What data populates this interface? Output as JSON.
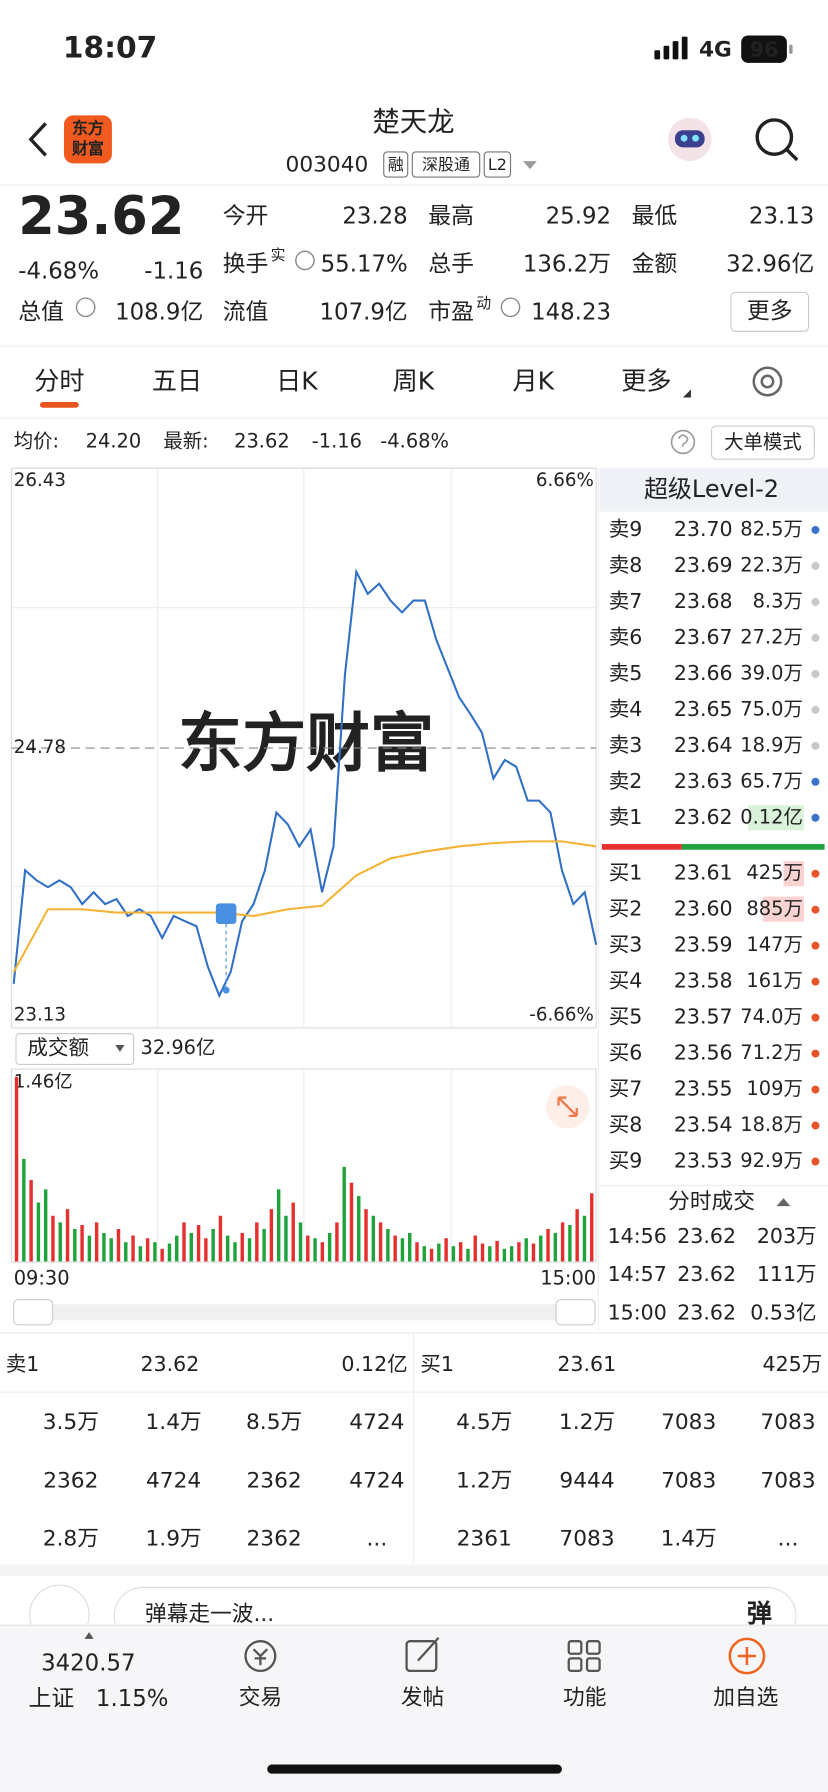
{
  "status_bar": {
    "time": "18:07",
    "network": "4G",
    "battery": "96"
  },
  "header": {
    "logo": [
      "东方",
      "财富"
    ],
    "title": "楚天龙",
    "code": "003040",
    "tags": [
      "融",
      "深股通",
      "L2"
    ]
  },
  "quote": {
    "price": "23.62",
    "change_percent": "-4.68%",
    "change": "-1.16",
    "stats": [
      {
        "label": "今开",
        "value": "23.28",
        "color": "#1f9e3a"
      },
      {
        "label": "最高",
        "value": "25.92",
        "color": "#e5302f"
      },
      {
        "label": "最低",
        "value": "23.13",
        "color": "#1f9e3a"
      },
      {
        "label": "换手",
        "sup": "实",
        "value": "55.17%"
      },
      {
        "label": "总手",
        "value": "136.2万"
      },
      {
        "label": "金额",
        "value": "32.96亿"
      },
      {
        "label": "总值",
        "value": "108.9亿"
      },
      {
        "label": "流值",
        "value": "107.9亿"
      },
      {
        "label": "市盈",
        "sup": "动",
        "value": "148.23"
      }
    ],
    "more": "更多"
  },
  "tabs": {
    "items": [
      "分时",
      "五日",
      "日K",
      "周K",
      "月K",
      "更多"
    ],
    "active": 0
  },
  "info_line": {
    "avg_label": "均价:",
    "avg": "24.20",
    "latest_label": "最新:",
    "latest": "23.62",
    "change": "-1.16",
    "change_percent": "-4.68%",
    "mode_button": "大单模式"
  },
  "chart_data": [
    {
      "type": "line",
      "watermark": "东方财富",
      "ylim": [
        23.13,
        26.43
      ],
      "yticks": [
        26.43,
        24.78,
        23.13
      ],
      "y2lim": [
        -6.66,
        6.66
      ],
      "y2ticks": [
        {
          "value": 6.66,
          "label": "6.66%"
        },
        {
          "value": -6.66,
          "label": "-6.66%"
        }
      ],
      "series": [
        {
          "color": "#2f6fc6",
          "values": [
            23.39,
            24.06,
            24.0,
            23.96,
            24.0,
            23.96,
            23.86,
            23.93,
            23.86,
            23.89,
            23.79,
            23.83,
            23.79,
            23.66,
            23.79,
            23.76,
            23.73,
            23.49,
            23.32,
            23.46,
            23.76,
            23.86,
            24.06,
            24.4,
            24.33,
            24.2,
            24.3,
            23.93,
            24.2,
            25.21,
            25.82,
            25.69,
            25.75,
            25.65,
            25.58,
            25.65,
            25.65,
            25.42,
            25.25,
            25.08,
            24.98,
            24.87,
            24.6,
            24.71,
            24.67,
            24.47,
            24.47,
            24.4,
            24.06,
            23.86,
            23.93,
            23.62
          ]
        },
        {
          "color": "#f5b335",
          "values": [
            23.46,
            23.83,
            23.83,
            23.81,
            23.81,
            23.81,
            23.81,
            23.79,
            23.83,
            23.85,
            24.03,
            24.13,
            24.17,
            24.2,
            24.22,
            24.23,
            24.23,
            24.2
          ]
        }
      ]
    },
    {
      "type": "bar",
      "title": "成交额",
      "total": "32.96亿",
      "ylim": [
        0,
        1.46
      ],
      "yticks": [
        {
          "value": 1.46,
          "label": "1.46亿"
        }
      ],
      "x_labels": [
        "09:30",
        "15:00"
      ],
      "values": [
        1.4,
        0.78,
        0.62,
        0.45,
        0.55,
        0.35,
        0.3,
        0.4,
        0.25,
        0.28,
        0.2,
        0.3,
        0.22,
        0.18,
        0.25,
        0.15,
        0.2,
        0.12,
        0.18,
        0.15,
        0.1,
        0.14,
        0.2,
        0.3,
        0.22,
        0.28,
        0.18,
        0.25,
        0.35,
        0.2,
        0.15,
        0.22,
        0.18,
        0.3,
        0.25,
        0.4,
        0.55,
        0.35,
        0.45,
        0.3,
        0.2,
        0.18,
        0.15,
        0.22,
        0.3,
        0.72,
        0.6,
        0.5,
        0.4,
        0.35,
        0.3,
        0.25,
        0.2,
        0.18,
        0.22,
        0.15,
        0.12,
        0.1,
        0.14,
        0.18,
        0.12,
        0.15,
        0.1,
        0.2,
        0.14,
        0.12,
        0.16,
        0.1,
        0.12,
        0.15,
        0.18,
        0.14,
        0.2,
        0.25,
        0.22,
        0.3,
        0.28,
        0.4,
        0.35,
        0.52
      ],
      "colors": [
        "#e5302f",
        "#21a33b",
        "#e5302f",
        "#21a33b",
        "#21a33b",
        "#e5302f",
        "#21a33b",
        "#e5302f",
        "#21a33b",
        "#e5302f",
        "#21a33b",
        "#e5302f",
        "#21a33b",
        "#21a33b",
        "#e5302f",
        "#21a33b",
        "#e5302f",
        "#21a33b",
        "#e5302f",
        "#21a33b",
        "#e5302f",
        "#21a33b",
        "#21a33b",
        "#e5302f",
        "#21a33b",
        "#e5302f",
        "#e5302f",
        "#21a33b",
        "#e5302f",
        "#21a33b",
        "#21a33b",
        "#e5302f",
        "#21a33b",
        "#e5302f",
        "#21a33b",
        "#e5302f",
        "#21a33b",
        "#21a33b",
        "#e5302f",
        "#21a33b",
        "#e5302f",
        "#21a33b",
        "#e5302f",
        "#21a33b",
        "#e5302f",
        "#21a33b",
        "#e5302f",
        "#21a33b",
        "#e5302f",
        "#21a33b",
        "#e5302f",
        "#21a33b",
        "#e5302f",
        "#21a33b",
        "#21a33b",
        "#e5302f",
        "#21a33b",
        "#e5302f",
        "#21a33b",
        "#e5302f",
        "#21a33b",
        "#e5302f",
        "#21a33b",
        "#e5302f",
        "#e5302f",
        "#21a33b",
        "#e5302f",
        "#21a33b",
        "#21a33b",
        "#e5302f",
        "#21a33b",
        "#e5302f",
        "#21a33b",
        "#e5302f",
        "#21a33b",
        "#e5302f",
        "#21a33b",
        "#e5302f",
        "#21a33b",
        "#e5302f"
      ]
    }
  ],
  "order_book": {
    "title": "超级Level-2",
    "asks": [
      {
        "label": "卖9",
        "price": "23.70",
        "volume": "82.5万",
        "dot": "#3a73c8"
      },
      {
        "label": "卖8",
        "price": "23.69",
        "volume": "22.3万",
        "dot": "#c8c8c8"
      },
      {
        "label": "卖7",
        "price": "23.68",
        "volume": "8.3万",
        "dot": "#c8c8c8"
      },
      {
        "label": "卖6",
        "price": "23.67",
        "volume": "27.2万",
        "dot": "#c8c8c8"
      },
      {
        "label": "卖5",
        "price": "23.66",
        "volume": "39.0万",
        "dot": "#c8c8c8"
      },
      {
        "label": "卖4",
        "price": "23.65",
        "volume": "75.0万",
        "dot": "#c8c8c8"
      },
      {
        "label": "卖3",
        "price": "23.64",
        "volume": "18.9万",
        "dot": "#c8c8c8"
      },
      {
        "label": "卖2",
        "price": "23.63",
        "volume": "65.7万",
        "dot": "#3a73c8"
      },
      {
        "label": "卖1",
        "price": "23.62",
        "volume": "0.12亿",
        "dot": "#3a73c8"
      }
    ],
    "bids": [
      {
        "label": "买1",
        "price": "23.61",
        "volume": "425万",
        "dot": "#e8542a"
      },
      {
        "label": "买2",
        "price": "23.60",
        "volume": "885万",
        "dot": "#e8542a"
      },
      {
        "label": "买3",
        "price": "23.59",
        "volume": "147万",
        "dot": "#e8542a"
      },
      {
        "label": "买4",
        "price": "23.58",
        "volume": "161万",
        "dot": "#e8542a"
      },
      {
        "label": "买5",
        "price": "23.57",
        "volume": "74.0万",
        "dot": "#e8542a"
      },
      {
        "label": "买6",
        "price": "23.56",
        "volume": "71.2万",
        "dot": "#e8542a"
      },
      {
        "label": "买7",
        "price": "23.55",
        "volume": "109万",
        "dot": "#e8542a"
      },
      {
        "label": "买8",
        "price": "23.54",
        "volume": "18.8万",
        "dot": "#e8542a"
      },
      {
        "label": "买9",
        "price": "23.53",
        "volume": "92.9万",
        "dot": "#e8542a"
      }
    ]
  },
  "trades": {
    "title": "分时成交",
    "rows": [
      {
        "time": "14:56",
        "price": "23.62",
        "volume": "203万",
        "color": "#1f9e3a"
      },
      {
        "time": "14:57",
        "price": "23.62",
        "volume": "111万",
        "color": "#1f9e3a"
      },
      {
        "time": "15:00",
        "price": "23.62",
        "volume": "0.53亿",
        "color": "#e5302f"
      }
    ]
  },
  "level_panel": {
    "ask": {
      "label": "卖1",
      "price": "23.62",
      "volume": "0.12亿",
      "orders": [
        [
          "3.5万",
          "1.4万",
          "8.5万",
          "4724"
        ],
        [
          "2362",
          "4724",
          "2362",
          "4724"
        ],
        [
          "2.8万",
          "1.9万",
          "2362",
          "..."
        ]
      ]
    },
    "bid": {
      "label": "买1",
      "price": "23.61",
      "volume": "425万",
      "orders": [
        [
          "4.5万",
          "1.2万",
          "7083",
          "7083"
        ],
        [
          "1.2万",
          "9444",
          "7083",
          "7083"
        ],
        [
          "2361",
          "7083",
          "1.4万",
          "..."
        ]
      ]
    }
  },
  "comment_input": {
    "placeholder": "弹幕走一波...",
    "button": "弹"
  },
  "bottom_nav": {
    "index_value": "3420.57",
    "index_name": "上证",
    "index_change": "1.15%",
    "items": [
      "交易",
      "发帖",
      "功能",
      "加自选"
    ]
  }
}
